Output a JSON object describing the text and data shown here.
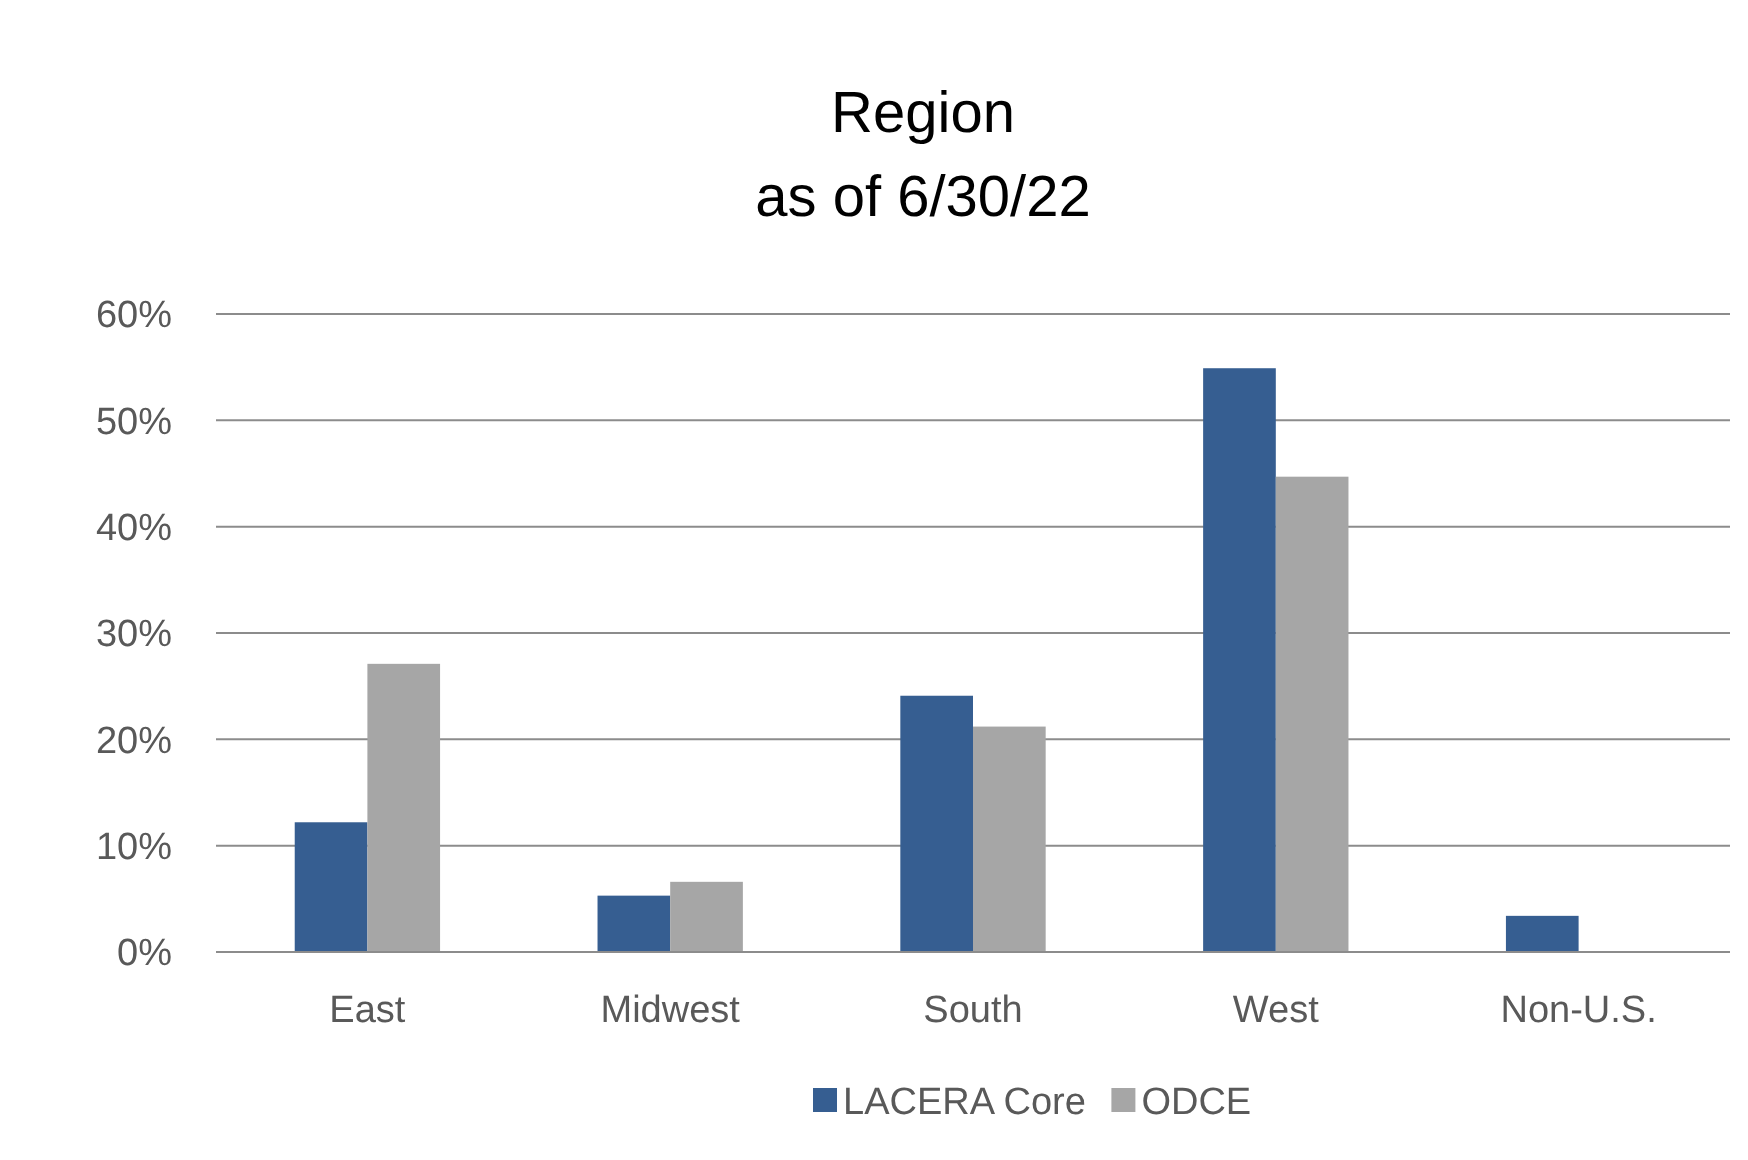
{
  "chart_data": {
    "type": "bar",
    "title": "Region",
    "subtitle": "as of 6/30/22",
    "categories": [
      "East",
      "Midwest",
      "South",
      "West",
      "Non-U.S."
    ],
    "series": [
      {
        "name": "LACERA Core",
        "color": "#365e91",
        "values": [
          12.2,
          5.3,
          24.1,
          54.9,
          3.4
        ]
      },
      {
        "name": "ODCE",
        "color": "#a6a6a6",
        "values": [
          27.1,
          6.6,
          21.2,
          44.7,
          0
        ]
      }
    ],
    "ylim": [
      0,
      60
    ],
    "yticks": [
      {
        "value": 0,
        "label": "0%"
      },
      {
        "value": 10,
        "label": "10%"
      },
      {
        "value": 20,
        "label": "20%"
      },
      {
        "value": 30,
        "label": "30%"
      },
      {
        "value": 40,
        "label": "40%"
      },
      {
        "value": 50,
        "label": "50%"
      },
      {
        "value": 60,
        "label": "60%"
      }
    ],
    "grid": "y",
    "legend": "bottom"
  }
}
